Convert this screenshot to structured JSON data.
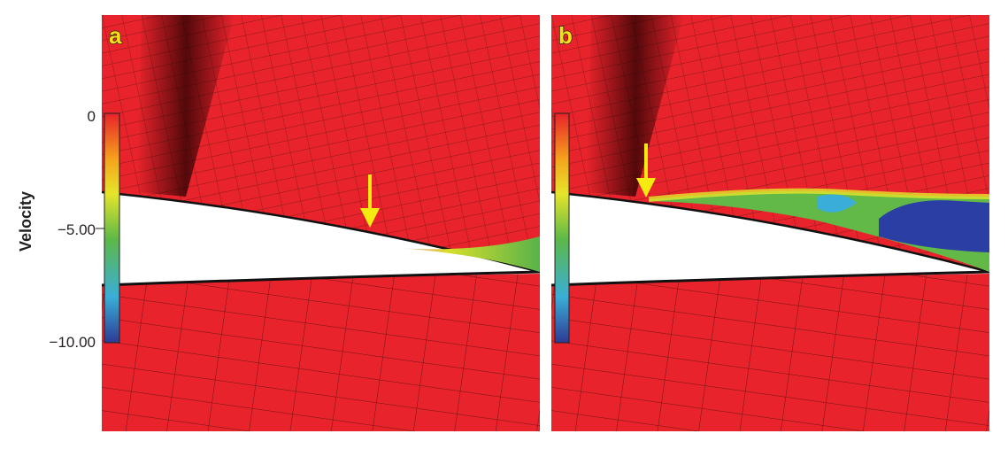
{
  "colorbar": {
    "label": "Velocity",
    "ticks": [
      "0",
      "−5.00",
      "−10.00"
    ]
  },
  "panels": [
    {
      "label": "a"
    },
    {
      "label": "b"
    }
  ]
}
